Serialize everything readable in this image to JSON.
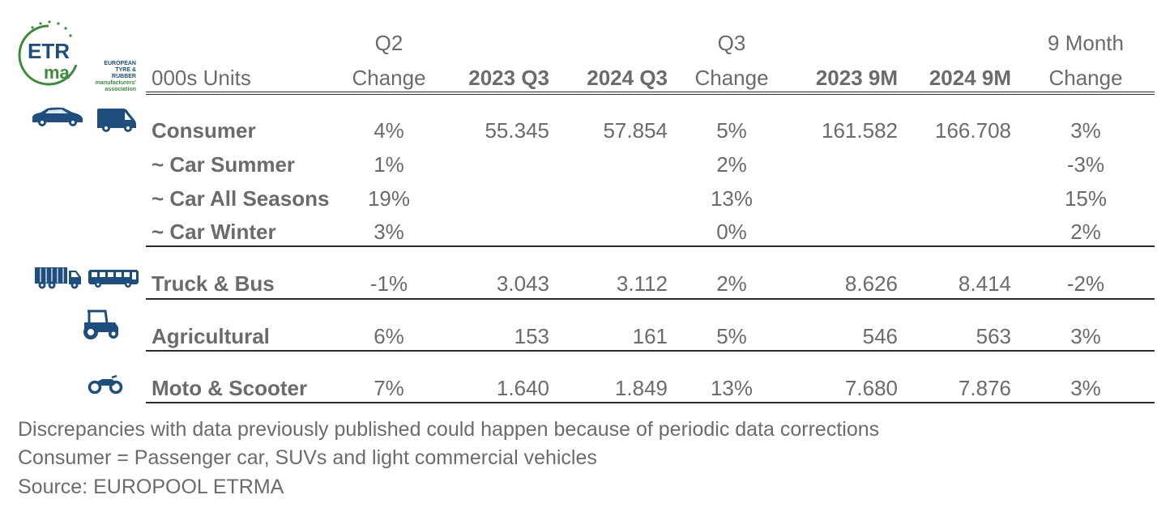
{
  "logo": {
    "acronym": "ETRMA",
    "line1": "EUROPEAN",
    "line2": "TYRE & RUBBER",
    "line3": "manufacturers'",
    "line4": "association"
  },
  "chart_data": {
    "type": "table",
    "unit_label": "000s Units",
    "header_top": {
      "q2": "Q2",
      "q3": "Q3",
      "m9": "9 Month"
    },
    "columns": [
      "Q2 Change",
      "2023 Q3",
      "2024 Q3",
      "Q3 Change",
      "2023 9M",
      "2024 9M",
      "9 Month Change"
    ],
    "header_bottom": {
      "q2_change": "Change",
      "y2023q3": "2023 Q3",
      "y2024q3": "2024 Q3",
      "q3_change": "Change",
      "y2023m9": "2023 9M",
      "y2024m9": "2024 9M",
      "m9_change": "Change"
    },
    "rows": [
      {
        "label": "Consumer",
        "values": [
          "4%",
          "55.345",
          "57.854",
          "5%",
          "161.582",
          "166.708",
          "3%"
        ]
      },
      {
        "label": "~ Car Summer",
        "values": [
          "1%",
          "",
          "",
          "2%",
          "",
          "",
          "-3%"
        ]
      },
      {
        "label": "~ Car All Seasons",
        "values": [
          "19%",
          "",
          "",
          "13%",
          "",
          "",
          "15%"
        ]
      },
      {
        "label": "~ Car Winter",
        "values": [
          "3%",
          "",
          "",
          "0%",
          "",
          "",
          "2%"
        ]
      },
      {
        "label": "Truck & Bus",
        "values": [
          "-1%",
          "3.043",
          "3.112",
          "2%",
          "8.626",
          "8.414",
          "-2%"
        ]
      },
      {
        "label": "Agricultural",
        "values": [
          "6%",
          "153",
          "161",
          "5%",
          "546",
          "563",
          "3%"
        ]
      },
      {
        "label": "Moto & Scooter",
        "values": [
          "7%",
          "1.640",
          "1.849",
          "13%",
          "7.680",
          "7.876",
          "3%"
        ]
      }
    ]
  },
  "notes": [
    "Discrepancies with data previously published could happen because of periodic data corrections",
    "Consumer = Passenger car, SUVs and light commercial vehicles",
    "Source: EUROPOOL ETRMA"
  ],
  "icons": [
    "car-icon",
    "van-icon",
    "truck-icon",
    "bus-icon",
    "tractor-icon",
    "motorcycle-icon"
  ],
  "colors": {
    "text": "#6b6b6b",
    "icon": "#1d4e7e",
    "logo_green": "#3d8b3d",
    "logo_blue": "#1d4e7e"
  }
}
